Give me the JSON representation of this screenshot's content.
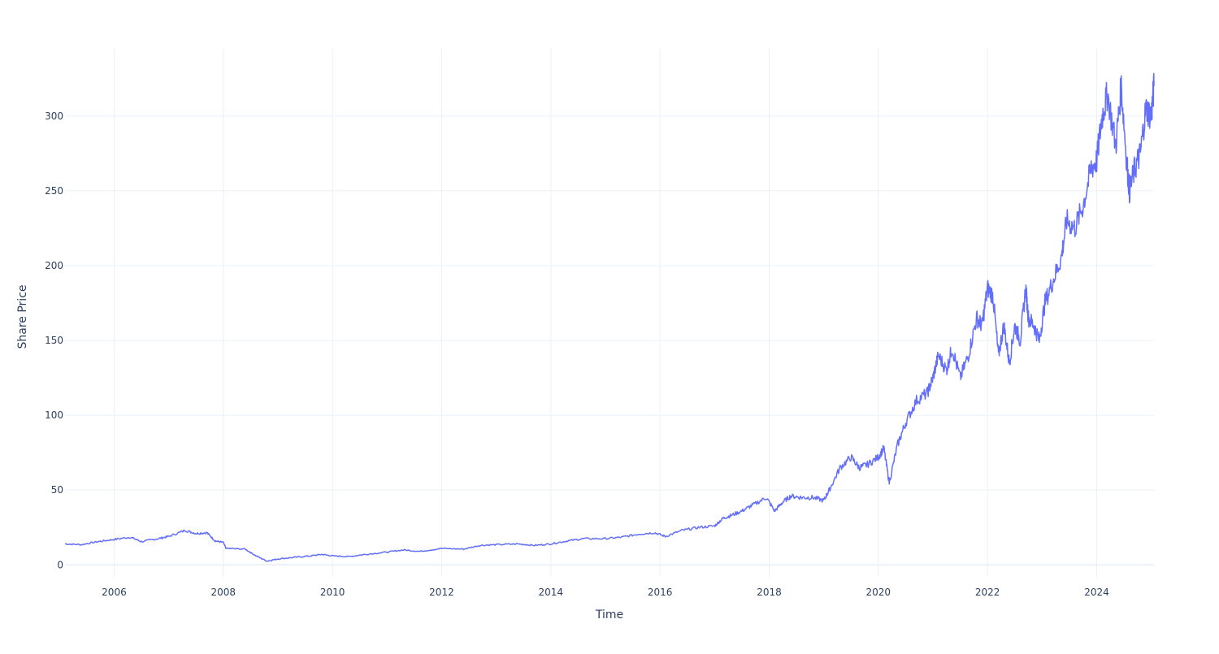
{
  "chart_data": {
    "type": "line",
    "title": "",
    "xlabel": "Time",
    "ylabel": "Share Price",
    "xlim": [
      2005.1,
      2025.05
    ],
    "ylim": [
      -8,
      345
    ],
    "grid": true,
    "legend": "none",
    "colors": {
      "line": "#636efa",
      "grid": "#ebf0f8",
      "text": "#2a3f5f",
      "zeroline": "#ebf0f8"
    },
    "x_ticks": [
      {
        "value": 2006,
        "label": "2006"
      },
      {
        "value": 2008,
        "label": "2008"
      },
      {
        "value": 2010,
        "label": "2010"
      },
      {
        "value": 2012,
        "label": "2012"
      },
      {
        "value": 2014,
        "label": "2014"
      },
      {
        "value": 2016,
        "label": "2016"
      },
      {
        "value": 2018,
        "label": "2018"
      },
      {
        "value": 2020,
        "label": "2020"
      },
      {
        "value": 2022,
        "label": "2022"
      },
      {
        "value": 2024,
        "label": "2024"
      }
    ],
    "y_ticks": [
      {
        "value": 0,
        "label": "0"
      },
      {
        "value": 50,
        "label": "50"
      },
      {
        "value": 100,
        "label": "100"
      },
      {
        "value": 150,
        "label": "150"
      },
      {
        "value": 200,
        "label": "200"
      },
      {
        "value": 250,
        "label": "250"
      },
      {
        "value": 300,
        "label": "300"
      }
    ],
    "series": [
      {
        "x": [
          2005.1,
          2005.4,
          2005.7,
          2006.0,
          2006.3,
          2006.5,
          2006.8,
          2007.0,
          2007.3,
          2007.5,
          2007.7,
          2007.85,
          2008.0,
          2008.05,
          2008.4,
          2008.6,
          2008.8,
          2009.0,
          2009.3,
          2009.6,
          2009.8,
          2010.0,
          2010.3,
          2010.6,
          2011.0,
          2011.3,
          2011.6,
          2012.0,
          2012.4,
          2012.7,
          2013.0,
          2013.4,
          2013.7,
          2014.0,
          2014.3,
          2014.6,
          2015.0,
          2015.3,
          2015.6,
          2015.9,
          2016.1,
          2016.4,
          2016.7,
          2017.0,
          2017.15,
          2017.3,
          2017.5,
          2017.7,
          2017.95,
          2018.1,
          2018.25,
          2018.4,
          2018.6,
          2018.8,
          2019.0,
          2019.1,
          2019.3,
          2019.5,
          2019.65,
          2019.8,
          2020.0,
          2020.1,
          2020.2,
          2020.35,
          2020.5,
          2020.7,
          2020.9,
          2021.0,
          2021.1,
          2021.25,
          2021.35,
          2021.5,
          2021.65,
          2021.8,
          2021.9,
          2022.0,
          2022.1,
          2022.2,
          2022.3,
          2022.4,
          2022.5,
          2022.6,
          2022.7,
          2022.75,
          2022.85,
          2022.95,
          2023.05,
          2023.2,
          2023.35,
          2023.45,
          2023.6,
          2023.75,
          2023.9,
          2024.0,
          2024.1,
          2024.2,
          2024.35,
          2024.45,
          2024.55,
          2024.6,
          2024.7,
          2024.8,
          2024.9,
          2025.0,
          2025.05
        ],
        "y": [
          14,
          13.5,
          15.5,
          17,
          18.5,
          15.5,
          17.5,
          19,
          23,
          21,
          21.5,
          16,
          15,
          11,
          10.5,
          6,
          2.5,
          4,
          5,
          6,
          7,
          6,
          5.5,
          7,
          8.5,
          10,
          9,
          11,
          10.5,
          13,
          13.5,
          14,
          13,
          14,
          16,
          17.5,
          17.5,
          18.5,
          20.5,
          21.5,
          19,
          23,
          25,
          26,
          31,
          33,
          36,
          40,
          45,
          36,
          42,
          46,
          45,
          45,
          43,
          50,
          65,
          72,
          65,
          67,
          72,
          78,
          55,
          80,
          95,
          110,
          115,
          125,
          140,
          130,
          145,
          125,
          140,
          165,
          160,
          185,
          180,
          140,
          160,
          135,
          160,
          150,
          185,
          165,
          160,
          150,
          175,
          190,
          205,
          230,
          225,
          240,
          265,
          270,
          300,
          315,
          280,
          320,
          270,
          250,
          265,
          275,
          305,
          300,
          320
        ]
      }
    ]
  }
}
